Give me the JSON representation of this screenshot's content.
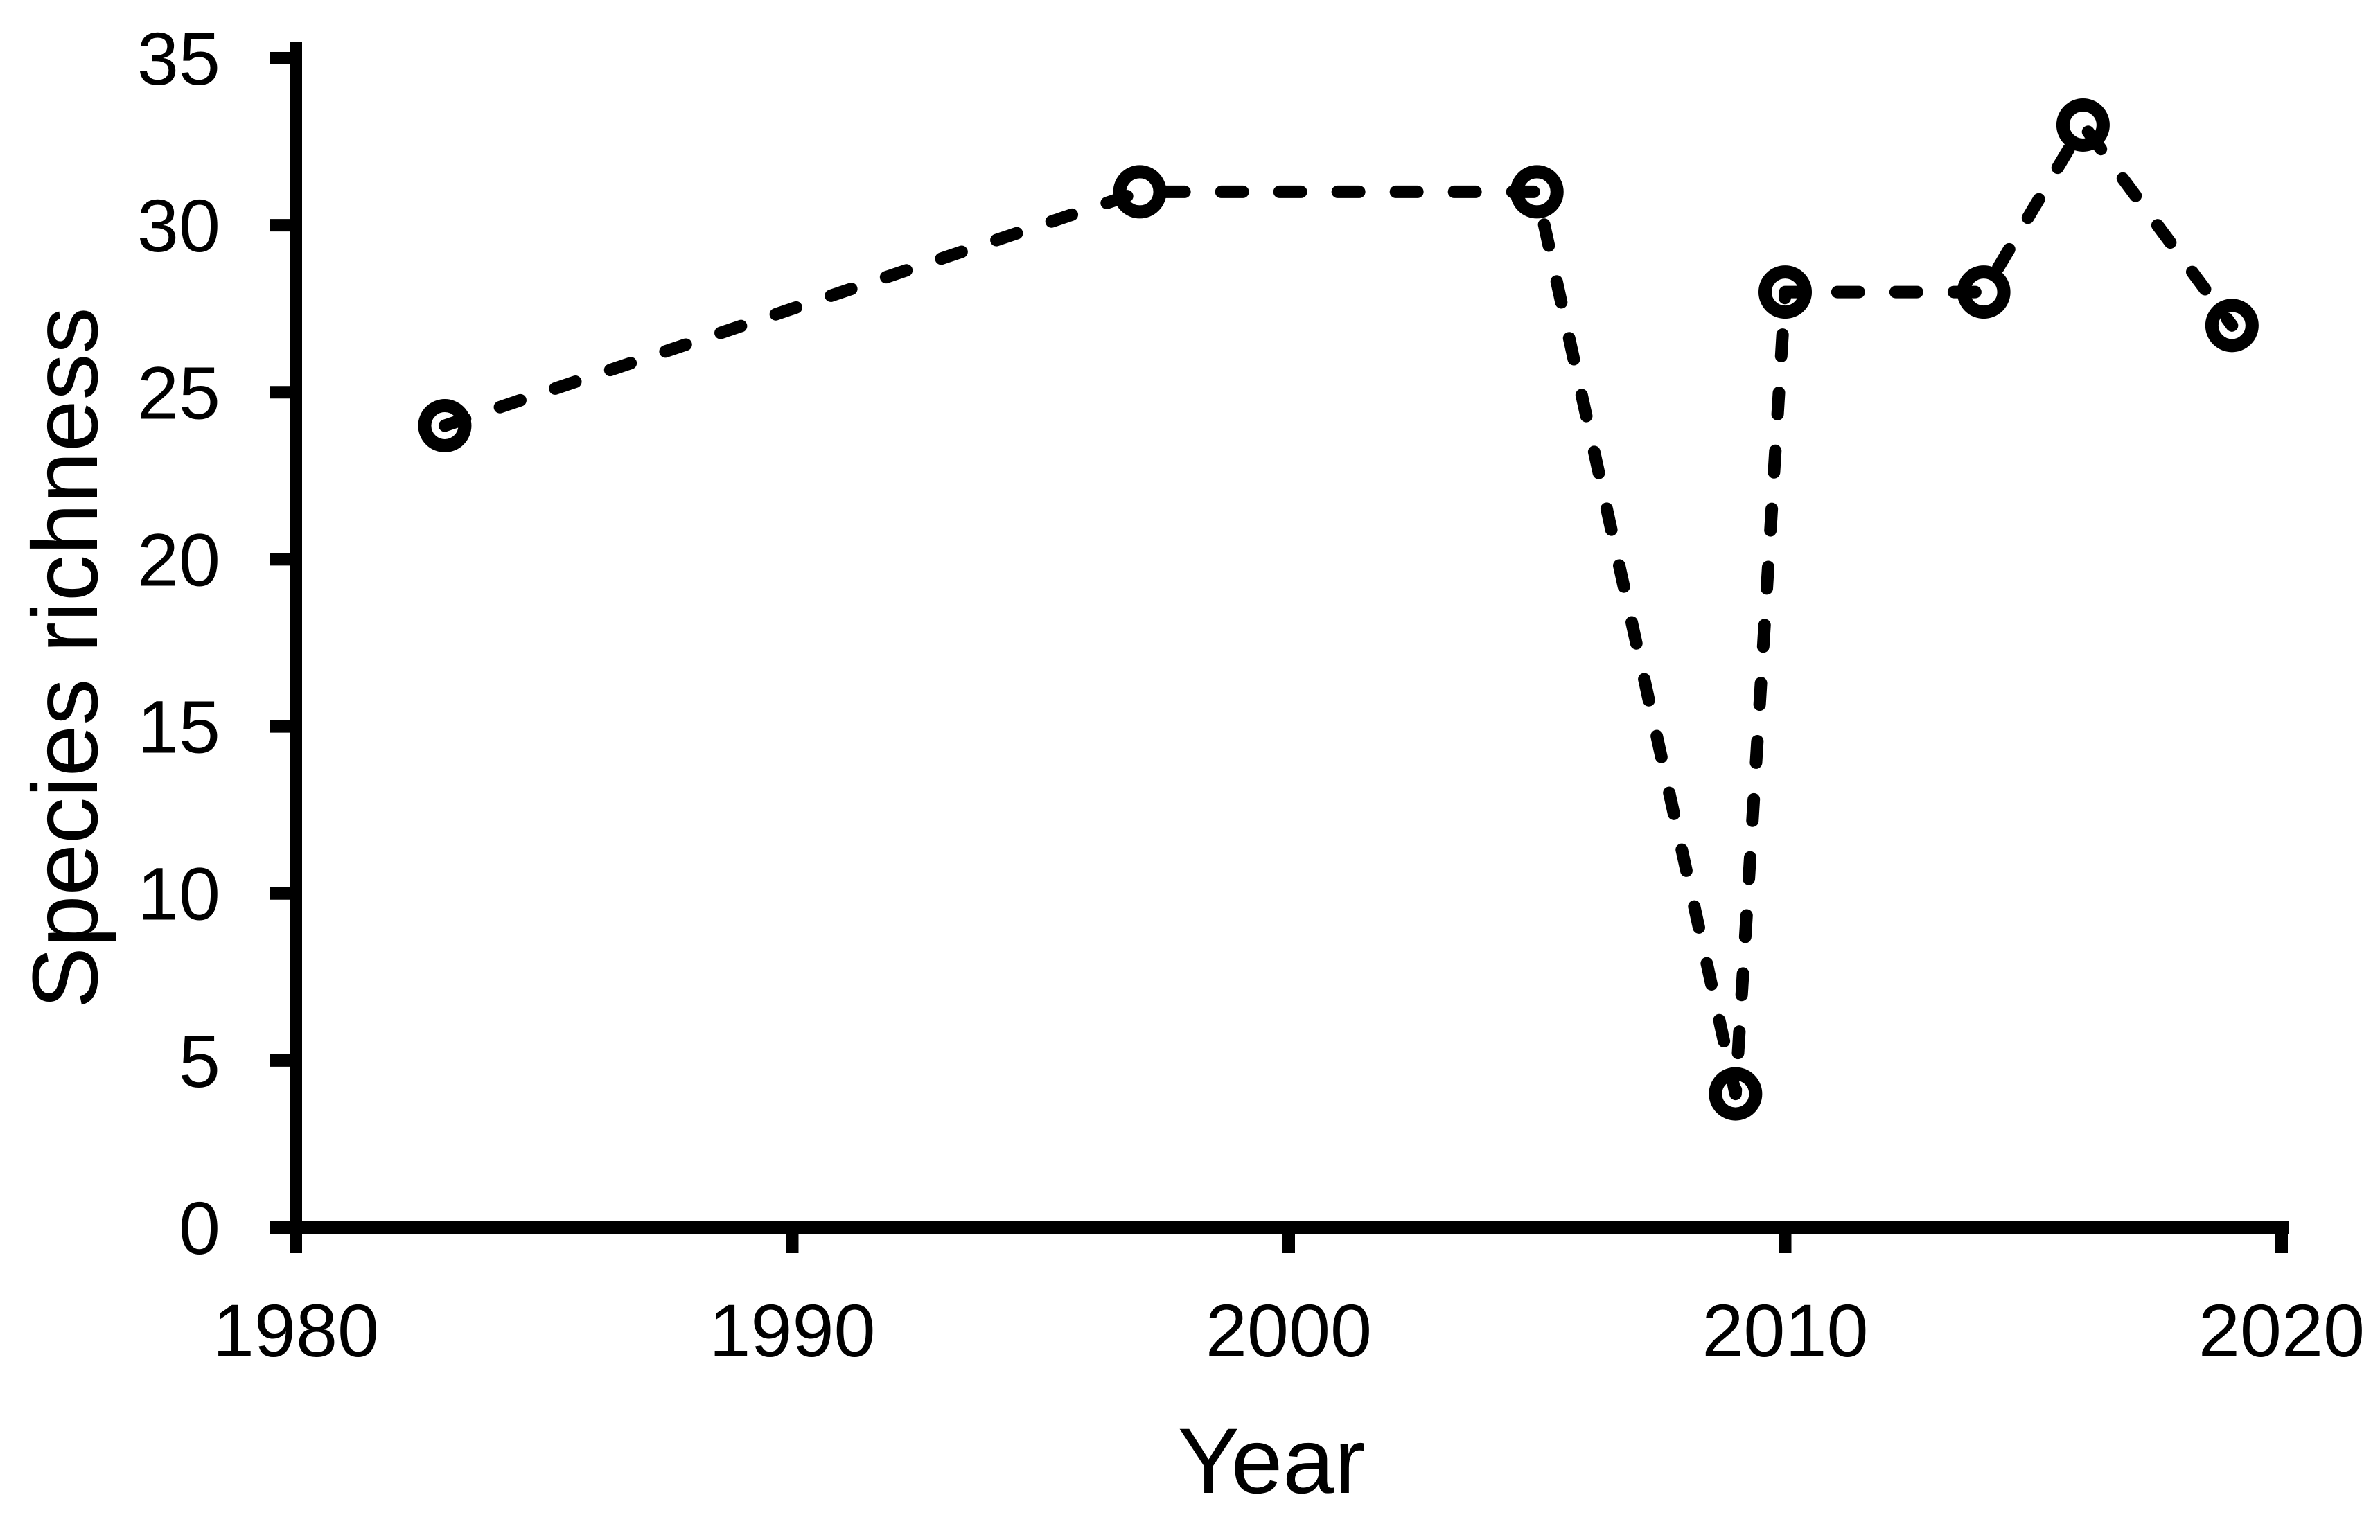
{
  "figure": {
    "background": "#ffffff",
    "ink": "#000000"
  },
  "chart_data": {
    "type": "line",
    "title": "",
    "xlabel": "Year",
    "ylabel": "Species richness",
    "series": [
      {
        "name": "Species richness",
        "points": [
          {
            "x": 1983,
            "y": 24
          },
          {
            "x": 1997,
            "y": 31
          },
          {
            "x": 2005,
            "y": 31
          },
          {
            "x": 2009,
            "y": 4
          },
          {
            "x": 2010,
            "y": 28
          },
          {
            "x": 2014,
            "y": 28
          },
          {
            "x": 2016,
            "y": 33
          },
          {
            "x": 2019,
            "y": 27
          }
        ],
        "line_style": "dashed",
        "marker": "open-circle",
        "color": "#000000"
      }
    ],
    "xlim": [
      1980,
      2020
    ],
    "ylim": [
      0,
      35
    ],
    "xticks": [
      1980,
      1990,
      2000,
      2010,
      2020
    ],
    "yticks": [
      0,
      5,
      10,
      15,
      20,
      25,
      30,
      35
    ],
    "grid": false,
    "legend_position": "none"
  }
}
